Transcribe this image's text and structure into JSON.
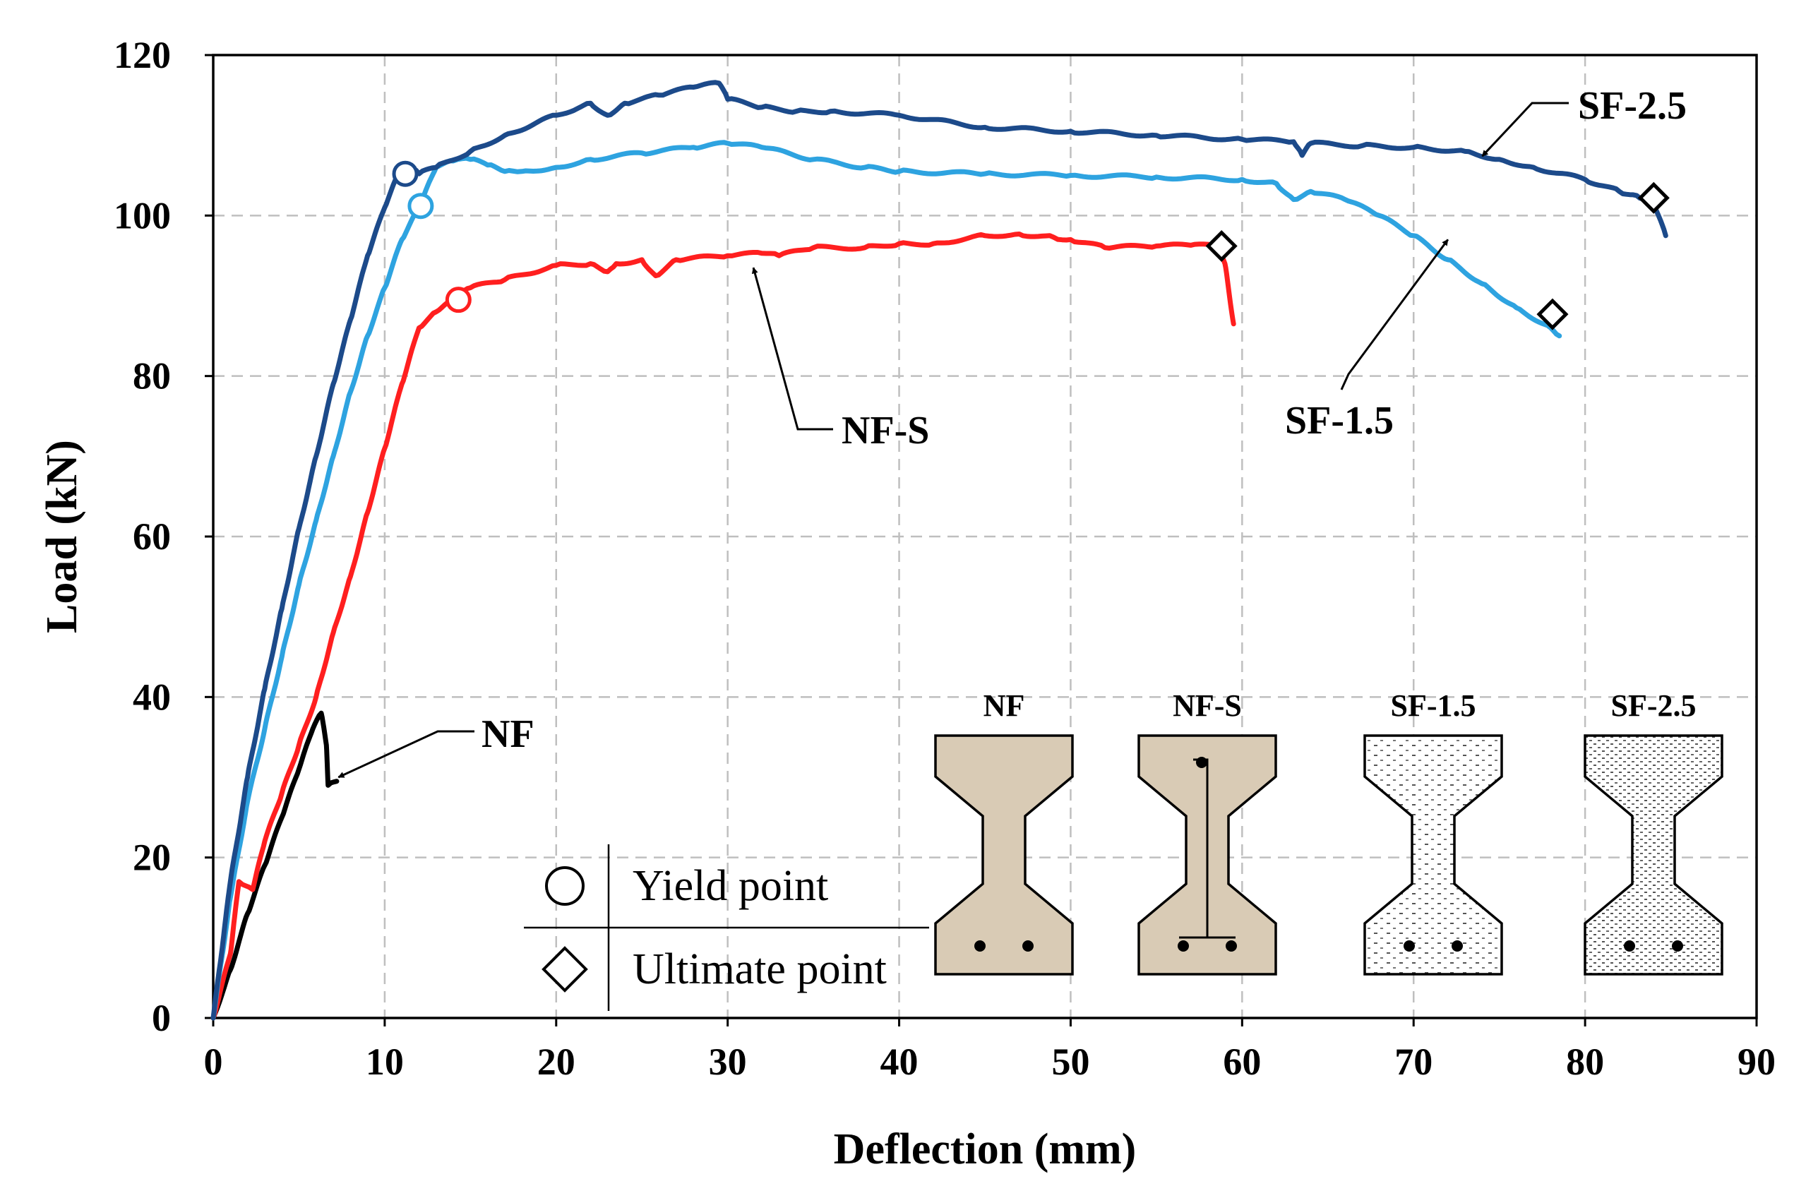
{
  "chart_data": {
    "type": "line",
    "title": "",
    "xlabel": "Deflection (mm)",
    "ylabel": "Load (kN)",
    "xlim": [
      0,
      90
    ],
    "ylim": [
      0,
      120
    ],
    "x_ticks": [
      "0",
      "10",
      "20",
      "30",
      "40",
      "50",
      "60",
      "70",
      "80",
      "90"
    ],
    "y_ticks": [
      "0",
      "20",
      "40",
      "60",
      "80",
      "100",
      "120"
    ],
    "grid": true,
    "series": [
      {
        "name": "NF",
        "color": "#000000",
        "points": [
          [
            0,
            0
          ],
          [
            1,
            6
          ],
          [
            2,
            13
          ],
          [
            3,
            19
          ],
          [
            4,
            25
          ],
          [
            5,
            31
          ],
          [
            5.8,
            36
          ],
          [
            6.3,
            38
          ],
          [
            6.6,
            34
          ],
          [
            6.7,
            29
          ],
          [
            7.2,
            29.5
          ]
        ]
      },
      {
        "name": "NF-S",
        "color": "#ff1f1f",
        "points": [
          [
            0,
            0
          ],
          [
            1,
            8
          ],
          [
            1.5,
            17
          ],
          [
            2.3,
            16
          ],
          [
            3,
            22
          ],
          [
            4,
            28
          ],
          [
            5,
            34
          ],
          [
            6,
            40
          ],
          [
            7,
            48
          ],
          [
            8,
            55
          ],
          [
            9,
            63
          ],
          [
            10,
            71
          ],
          [
            11,
            79
          ],
          [
            12,
            86
          ],
          [
            13,
            88
          ],
          [
            14,
            89.5
          ],
          [
            15,
            91
          ],
          [
            17,
            92
          ],
          [
            20,
            93.8
          ],
          [
            22,
            94
          ],
          [
            23,
            93
          ],
          [
            23.5,
            94
          ],
          [
            25,
            94.5
          ],
          [
            25.8,
            92.5
          ],
          [
            27,
            94.5
          ],
          [
            30,
            95
          ],
          [
            32,
            95.3
          ],
          [
            33,
            95
          ],
          [
            35,
            96
          ],
          [
            38,
            96
          ],
          [
            40,
            96.5
          ],
          [
            42,
            96.5
          ],
          [
            45,
            97.5
          ],
          [
            47,
            97.7
          ],
          [
            49,
            97.3
          ],
          [
            50,
            97
          ],
          [
            52,
            96
          ],
          [
            55,
            96.2
          ],
          [
            57,
            96.3
          ],
          [
            58.5,
            96.2
          ],
          [
            59,
            94
          ],
          [
            59.5,
            86.5
          ]
        ]
      },
      {
        "name": "SF-1.5",
        "color": "#2ea3e0",
        "points": [
          [
            0,
            0
          ],
          [
            1,
            15
          ],
          [
            2,
            27
          ],
          [
            3,
            36
          ],
          [
            4,
            45
          ],
          [
            5,
            54
          ],
          [
            6,
            62
          ],
          [
            7,
            70
          ],
          [
            8,
            78
          ],
          [
            9,
            85
          ],
          [
            10,
            91
          ],
          [
            11,
            97
          ],
          [
            12,
            101
          ],
          [
            13,
            106
          ],
          [
            14,
            106.8
          ],
          [
            15,
            107
          ],
          [
            16,
            106.3
          ],
          [
            17,
            105.5
          ],
          [
            18,
            105.5
          ],
          [
            20,
            106
          ],
          [
            22,
            107
          ],
          [
            25,
            107.8
          ],
          [
            28,
            108.5
          ],
          [
            30,
            109
          ],
          [
            32,
            108.5
          ],
          [
            35,
            107
          ],
          [
            38,
            106
          ],
          [
            40,
            105.5
          ],
          [
            45,
            105.2
          ],
          [
            50,
            105
          ],
          [
            55,
            104.8
          ],
          [
            60,
            104.5
          ],
          [
            62,
            104
          ],
          [
            63,
            102
          ],
          [
            64,
            103
          ],
          [
            66,
            102
          ],
          [
            68,
            100
          ],
          [
            70,
            97.5
          ],
          [
            72,
            94.5
          ],
          [
            74,
            91.5
          ],
          [
            76,
            88.5
          ],
          [
            78,
            86
          ],
          [
            78.5,
            85
          ]
        ]
      },
      {
        "name": "SF-2.5",
        "color": "#1c4a8a",
        "points": [
          [
            0,
            0
          ],
          [
            1,
            17
          ],
          [
            2,
            30
          ],
          [
            3,
            41
          ],
          [
            4,
            51
          ],
          [
            5,
            61
          ],
          [
            6,
            70
          ],
          [
            7,
            79
          ],
          [
            8,
            87
          ],
          [
            9,
            95
          ],
          [
            10,
            101
          ],
          [
            10.8,
            105.2
          ],
          [
            11.5,
            106
          ],
          [
            12,
            105.2
          ],
          [
            13,
            106
          ],
          [
            15,
            108
          ],
          [
            17,
            110
          ],
          [
            20,
            112.5
          ],
          [
            22,
            114
          ],
          [
            23,
            112.5
          ],
          [
            24,
            114
          ],
          [
            26,
            115
          ],
          [
            28,
            116
          ],
          [
            29.5,
            116.5
          ],
          [
            30,
            114.5
          ],
          [
            32,
            113.5
          ],
          [
            34,
            113
          ],
          [
            36,
            113
          ],
          [
            40,
            112.5
          ],
          [
            45,
            111
          ],
          [
            50,
            110.5
          ],
          [
            55,
            110
          ],
          [
            60,
            109.5
          ],
          [
            63,
            109.2
          ],
          [
            63.5,
            107.5
          ],
          [
            64,
            109
          ],
          [
            67,
            108.7
          ],
          [
            70,
            108.5
          ],
          [
            73,
            108
          ],
          [
            75,
            107
          ],
          [
            77,
            106
          ],
          [
            80,
            104.5
          ],
          [
            82,
            103
          ],
          [
            83,
            102.5
          ],
          [
            84,
            101.5
          ],
          [
            84.7,
            97.5
          ]
        ]
      }
    ],
    "yield_points": [
      {
        "series": "SF-2.5",
        "x": 11.2,
        "y": 105.2
      },
      {
        "series": "SF-1.5",
        "x": 12.1,
        "y": 101.2
      },
      {
        "series": "NF-S",
        "x": 14.3,
        "y": 89.5
      }
    ],
    "ultimate_points": [
      {
        "series": "NF-S",
        "x": 58.8,
        "y": 96.2
      },
      {
        "series": "SF-1.5",
        "x": 78.1,
        "y": 87.7
      },
      {
        "series": "SF-2.5",
        "x": 84.0,
        "y": 102.2
      }
    ],
    "annotations": [
      {
        "label": "SF-2.5",
        "target_x": 74.0,
        "target_y": 107.4
      },
      {
        "label": "SF-1.5",
        "target_x": 72.0,
        "target_y": 97.0
      },
      {
        "label": "NF-S",
        "target_x": 31.5,
        "target_y": 93.5
      },
      {
        "label": "NF",
        "target_x": 7.3,
        "target_y": 30.0
      }
    ],
    "legend": {
      "placement": "bottom-center",
      "entries": [
        {
          "marker": "circle",
          "label": "Yield point"
        },
        {
          "marker": "diamond",
          "label": "Ultimate point"
        }
      ]
    },
    "inset_sections": [
      {
        "label": "NF",
        "fill": "#d9cbb5",
        "pattern": "plain",
        "detail": "bottom bars"
      },
      {
        "label": "NF-S",
        "fill": "#d9cbb5",
        "pattern": "plain",
        "detail": "bars and stirrup"
      },
      {
        "label": "SF-1.5",
        "fill": "#ffffff",
        "pattern": "dotted",
        "detail": "bottom bars"
      },
      {
        "label": "SF-2.5",
        "fill": "#ffffff",
        "pattern": "dotted-dense",
        "detail": "bottom bars"
      }
    ]
  }
}
